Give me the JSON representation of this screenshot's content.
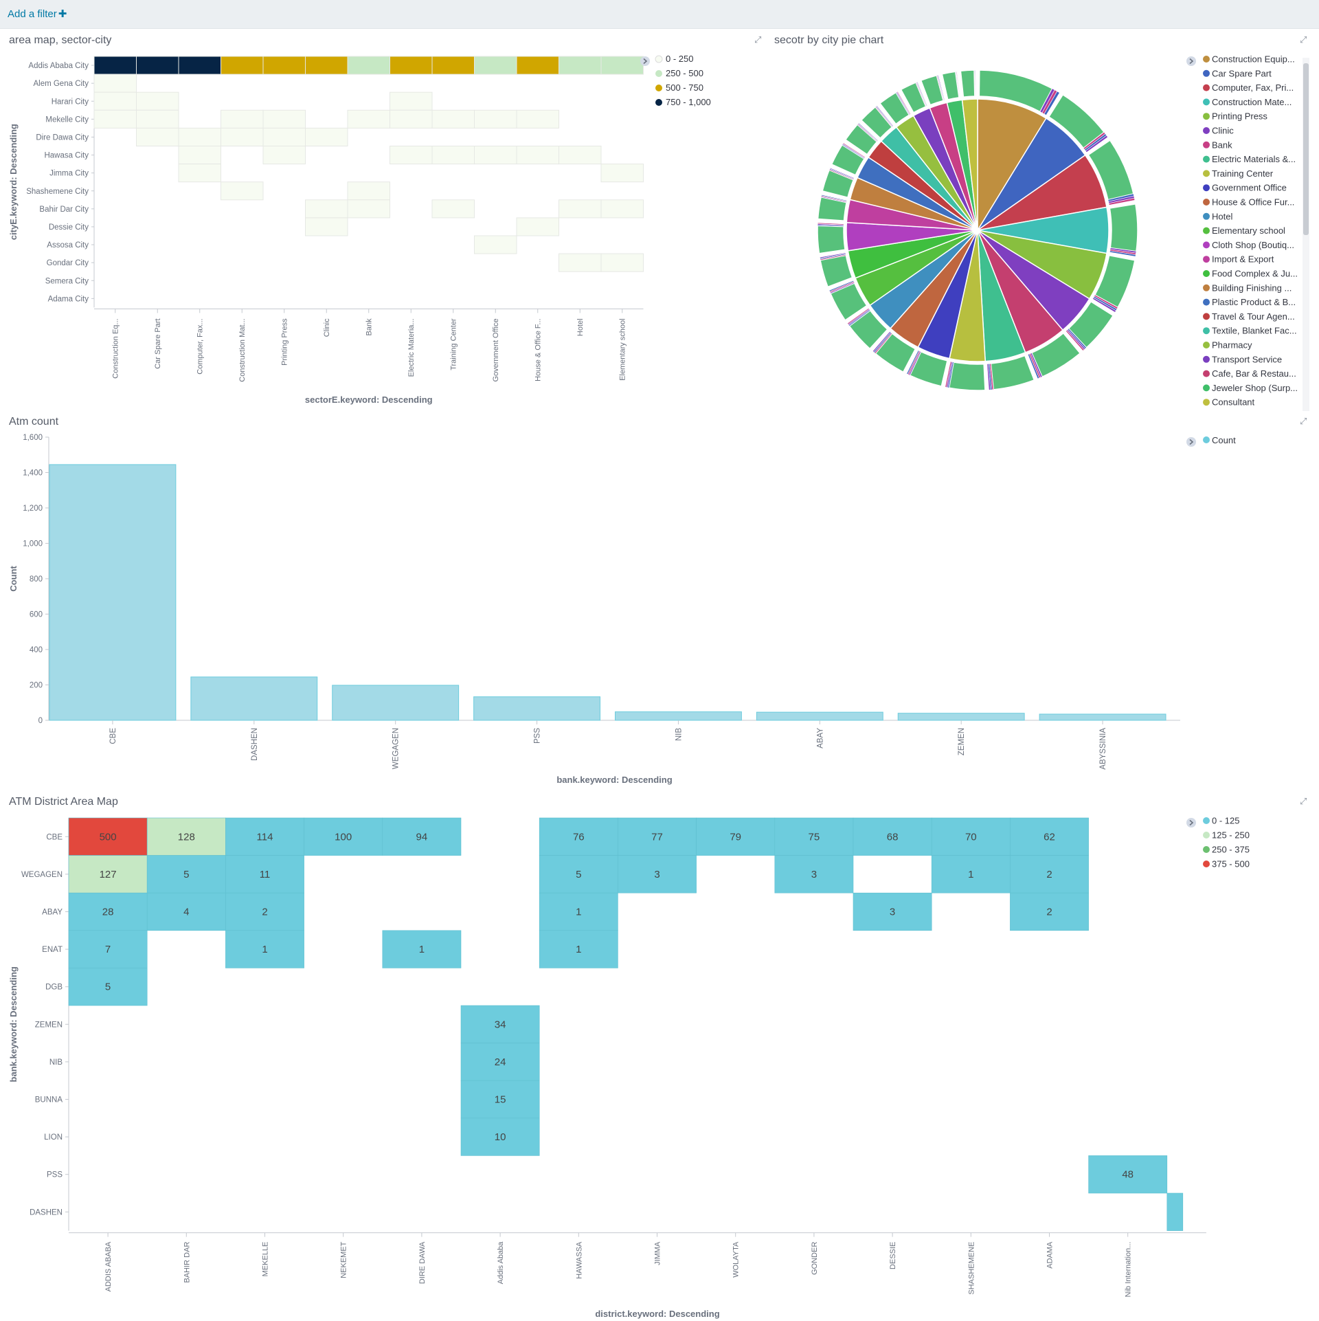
{
  "filter_bar": {
    "add_filter_label": "Add a filter",
    "plus_icon": "plus-icon"
  },
  "panels": {
    "heatmap1": {
      "title": "area map, sector-city",
      "ylabel": "cityE.keyword: Descending",
      "xlabel": "sectorE.keyword: Descending",
      "rows": [
        "Addis Ababa City",
        "Alem Gena City",
        "Harari City",
        "Mekelle City",
        "Dire Dawa City",
        "Hawasa City",
        "Jimma City",
        "Shashemene City",
        "Bahir Dar City",
        "Dessie City",
        "Assosa City",
        "Gondar City",
        "Semera City",
        "Adama City"
      ],
      "cols": [
        "Construction Eq...",
        "Car Spare Part",
        "Computer, Fax...",
        "Construction Mat...",
        "Printing Press",
        "Clinic",
        "Bank",
        "Electric Materia...",
        "Training Center",
        "Government Office",
        "House & Office F...",
        "Hotel",
        "Elementary school"
      ],
      "legend": [
        "0 - 250",
        "250 - 500",
        "500 - 750",
        "750 - 1,000"
      ],
      "legend_colors": [
        "#f7fbf2",
        "#c6e8c4",
        "#d0a600",
        "#062445"
      ]
    },
    "pie": {
      "title": "secotr by city pie chart",
      "legend": [
        "Construction Equip...",
        "Car Spare Part",
        "Computer, Fax, Pri...",
        "Construction Mate...",
        "Printing Press",
        "Clinic",
        "Bank",
        "Electric Materials &...",
        "Training Center",
        "Government Office",
        "House & Office Fur...",
        "Hotel",
        "Elementary school",
        "Cloth Shop (Boutiq...",
        "Import & Export",
        "Food Complex & Ju...",
        "Building Finishing ...",
        "Plastic Product & B...",
        "Travel & Tour Agen...",
        "Textile, Blanket Fac...",
        "Pharmacy",
        "Transport Service",
        "Cafe, Bar & Restau...",
        "Jeweler Shop (Surp...",
        "Consultant"
      ],
      "colors": [
        "#bf8f3f",
        "#3f65c0",
        "#c43f4e",
        "#3fbfb6",
        "#88bf3f",
        "#7f3fc0",
        "#c83f85",
        "#3fbf8f",
        "#b7bf3f",
        "#3f3fbf",
        "#bf663f",
        "#3f8fbf",
        "#55bf3f",
        "#b03fbf",
        "#bf3f9f",
        "#3fbf3f",
        "#bf7f3f",
        "#3f6fbf",
        "#bf3f3f",
        "#3fbfa6",
        "#96bf3f",
        "#7a3fbf",
        "#c43f6f",
        "#3fbf69",
        "#bfbf3f"
      ]
    },
    "bar": {
      "title": "Atm count",
      "legend": [
        "Count"
      ],
      "legend_color": "#6dccdd"
    },
    "heatmap2": {
      "title": "ATM District Area Map",
      "ylabel": "bank.keyword: Descending",
      "xlabel": "district.keyword: Descending",
      "legend": [
        "0 - 125",
        "125 - 250",
        "250 - 375",
        "375 - 500"
      ],
      "legend_colors": [
        "#6dccdd",
        "#c6e8c4",
        "#6cc070",
        "#e2483d"
      ]
    }
  },
  "chart_data": [
    {
      "type": "heatmap",
      "title": "area map, sector-city",
      "xlabel": "sectorE.keyword: Descending",
      "ylabel": "cityE.keyword: Descending",
      "rows": [
        "Addis Ababa City",
        "Alem Gena City",
        "Harari City",
        "Mekelle City",
        "Dire Dawa City",
        "Hawasa City",
        "Jimma City",
        "Shashemene City",
        "Bahir Dar City",
        "Dessie City",
        "Assosa City",
        "Gondar City",
        "Semera City",
        "Adama City"
      ],
      "cols": [
        "Construction Eq...",
        "Car Spare Part",
        "Computer, Fax...",
        "Construction Mat...",
        "Printing Press",
        "Clinic",
        "Bank",
        "Electric Materia...",
        "Training Center",
        "Government Office",
        "House & Office F...",
        "Hotel",
        "Elementary school"
      ],
      "cells": [
        [
          0,
          0,
          "750 - 1,000"
        ],
        [
          0,
          1,
          "750 - 1,000"
        ],
        [
          0,
          2,
          "750 - 1,000"
        ],
        [
          0,
          3,
          "500 - 750"
        ],
        [
          0,
          4,
          "500 - 750"
        ],
        [
          0,
          5,
          "500 - 750"
        ],
        [
          0,
          6,
          "250 - 500"
        ],
        [
          0,
          7,
          "500 - 750"
        ],
        [
          0,
          8,
          "500 - 750"
        ],
        [
          0,
          9,
          "250 - 500"
        ],
        [
          0,
          10,
          "500 - 750"
        ],
        [
          0,
          11,
          "250 - 500"
        ],
        [
          0,
          12,
          "250 - 500"
        ],
        [
          1,
          0,
          "0 - 250"
        ],
        [
          2,
          0,
          "0 - 250"
        ],
        [
          2,
          1,
          "0 - 250"
        ],
        [
          2,
          7,
          "0 - 250"
        ],
        [
          3,
          0,
          "0 - 250"
        ],
        [
          3,
          1,
          "0 - 250"
        ],
        [
          3,
          3,
          "0 - 250"
        ],
        [
          3,
          4,
          "0 - 250"
        ],
        [
          3,
          6,
          "0 - 250"
        ],
        [
          3,
          7,
          "0 - 250"
        ],
        [
          3,
          8,
          "0 - 250"
        ],
        [
          3,
          9,
          "0 - 250"
        ],
        [
          3,
          10,
          "0 - 250"
        ],
        [
          4,
          1,
          "0 - 250"
        ],
        [
          4,
          2,
          "0 - 250"
        ],
        [
          4,
          3,
          "0 - 250"
        ],
        [
          4,
          4,
          "0 - 250"
        ],
        [
          4,
          5,
          "0 - 250"
        ],
        [
          5,
          2,
          "0 - 250"
        ],
        [
          5,
          4,
          "0 - 250"
        ],
        [
          5,
          7,
          "0 - 250"
        ],
        [
          5,
          8,
          "0 - 250"
        ],
        [
          5,
          9,
          "0 - 250"
        ],
        [
          5,
          10,
          "0 - 250"
        ],
        [
          5,
          11,
          "0 - 250"
        ],
        [
          6,
          2,
          "0 - 250"
        ],
        [
          6,
          12,
          "0 - 250"
        ],
        [
          7,
          3,
          "0 - 250"
        ],
        [
          7,
          6,
          "0 - 250"
        ],
        [
          8,
          5,
          "0 - 250"
        ],
        [
          8,
          6,
          "0 - 250"
        ],
        [
          8,
          8,
          "0 - 250"
        ],
        [
          8,
          11,
          "0 - 250"
        ],
        [
          8,
          12,
          "0 - 250"
        ],
        [
          9,
          5,
          "0 - 250"
        ],
        [
          9,
          10,
          "0 - 250"
        ],
        [
          10,
          9,
          "0 - 250"
        ],
        [
          11,
          11,
          "0 - 250"
        ],
        [
          11,
          12,
          "0 - 250"
        ]
      ],
      "legend": [
        "0 - 250",
        "250 - 500",
        "500 - 750",
        "750 - 1,000"
      ]
    },
    {
      "type": "pie",
      "title": "secotr by city pie chart",
      "slices": [
        "Construction Equip...",
        "Car Spare Part",
        "Computer, Fax, Pri...",
        "Construction Mate...",
        "Printing Press",
        "Clinic",
        "Bank",
        "Electric Materials &...",
        "Training Center",
        "Government Office",
        "House & Office Fur...",
        "Hotel",
        "Elementary school",
        "Cloth Shop (Boutiq...",
        "Import & Export",
        "Food Complex & Ju...",
        "Building Finishing ...",
        "Plastic Product & B...",
        "Travel & Tour Agen...",
        "Textile, Blanket Fac...",
        "Pharmacy",
        "Transport Service",
        "Cafe, Bar & Restau...",
        "Jeweler Shop (Surp...",
        "Consultant"
      ],
      "inner_order": [
        "Construction Equip...",
        "Car Spare Part",
        "Computer, Fax, Pri...",
        "Construction Mate...",
        "Printing Press",
        "Clinic",
        "Cafe, Bar & Restau...",
        "Electric Materials &...",
        "Training Center",
        "Government Office",
        "House & Office Fur...",
        "Hotel",
        "Elementary school",
        "Food Complex & Ju...",
        "Cloth Shop (Boutiq...",
        "Import & Export",
        "Building Finishing ...",
        "Plastic Product & B...",
        "Travel & Tour Agen...",
        "Textile, Blanket Fac...",
        "Pharmacy",
        "Transport Service",
        "Bank",
        "Jeweler Shop (Surp...",
        "Consultant"
      ],
      "inner_values": [
        28,
        21,
        22,
        18,
        19,
        16,
        17,
        16,
        14,
        13,
        13,
        12,
        12,
        11,
        11,
        9,
        9,
        9,
        8,
        8,
        8,
        7,
        7,
        6,
        6
      ],
      "outer_ring": "city breakdown per sector"
    },
    {
      "type": "bar",
      "title": "Atm count",
      "xlabel": "bank.keyword: Descending",
      "ylabel": "Count",
      "categories": [
        "CBE",
        "DASHEN",
        "WEGAGEN",
        "PSS",
        "NIB",
        "ABAY",
        "ZEMEN",
        "ABYSSINIA"
      ],
      "series": [
        {
          "name": "Count",
          "values": [
            1445,
            245,
            198,
            133,
            48,
            46,
            40,
            35
          ]
        }
      ],
      "ylim": [
        0,
        1600
      ],
      "yticks": [
        0,
        200,
        400,
        600,
        800,
        1000,
        1200,
        1400,
        1600
      ],
      "ytick_labels": [
        "0",
        "200",
        "400",
        "600",
        "800",
        "1,000",
        "1,200",
        "1,400",
        "1,600"
      ]
    },
    {
      "type": "heatmap",
      "title": "ATM District Area Map",
      "xlabel": "district.keyword: Descending",
      "ylabel": "bank.keyword: Descending",
      "rows": [
        "CBE",
        "WEGAGEN",
        "ABAY",
        "ENAT",
        "DGB",
        "ZEMEN",
        "NIB",
        "BUNNA",
        "LION",
        "PSS",
        "DASHEN"
      ],
      "cols": [
        "ADDIS ABABA",
        "BAHIR DAR",
        "MEKELLE",
        "NEKEMET",
        "DIRE DAWA",
        "Addis Ababa",
        "HAWASSA",
        "JIMMA",
        "WOLAYTA",
        "GONDER",
        "DESSIE",
        "SHASHEMENE",
        "ADAMA",
        "Nib Internation...",
        ""
      ],
      "cells": [
        [
          0,
          0,
          500
        ],
        [
          0,
          1,
          128
        ],
        [
          0,
          2,
          114
        ],
        [
          0,
          3,
          100
        ],
        [
          0,
          4,
          94
        ],
        [
          0,
          6,
          76
        ],
        [
          0,
          7,
          77
        ],
        [
          0,
          8,
          79
        ],
        [
          0,
          9,
          75
        ],
        [
          0,
          10,
          68
        ],
        [
          0,
          11,
          70
        ],
        [
          0,
          12,
          62
        ],
        [
          1,
          0,
          127
        ],
        [
          1,
          1,
          5
        ],
        [
          1,
          2,
          11
        ],
        [
          1,
          6,
          5
        ],
        [
          1,
          7,
          3
        ],
        [
          1,
          9,
          3
        ],
        [
          1,
          11,
          1
        ],
        [
          1,
          12,
          2
        ],
        [
          2,
          0,
          28
        ],
        [
          2,
          1,
          4
        ],
        [
          2,
          2,
          2
        ],
        [
          2,
          6,
          1
        ],
        [
          2,
          10,
          3
        ],
        [
          2,
          12,
          2
        ],
        [
          3,
          0,
          7
        ],
        [
          3,
          2,
          1
        ],
        [
          3,
          4,
          1
        ],
        [
          3,
          6,
          1
        ],
        [
          4,
          0,
          5
        ],
        [
          5,
          5,
          34
        ],
        [
          6,
          5,
          24
        ],
        [
          7,
          5,
          15
        ],
        [
          8,
          5,
          10
        ],
        [
          9,
          13,
          48
        ],
        [
          10,
          14,
          null
        ]
      ],
      "legend": [
        "0 - 125",
        "125 - 250",
        "250 - 375",
        "375 - 500"
      ]
    }
  ]
}
